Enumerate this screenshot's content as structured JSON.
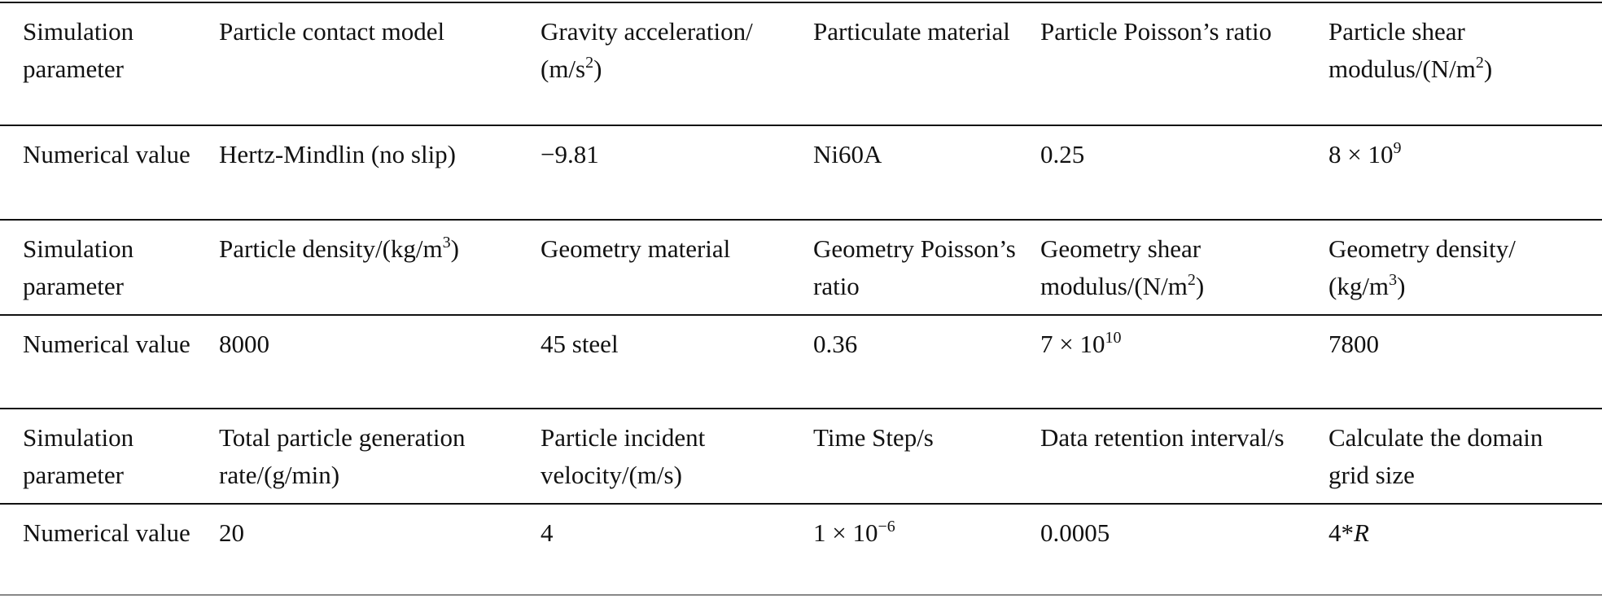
{
  "table": {
    "rows": [
      [
        [
          "Simulation parameter"
        ],
        [
          "Particle contact model"
        ],
        [
          "Gravity acceleration/ (m/s",
          {
            "sup": "2"
          },
          ")"
        ],
        [
          "Particulate material"
        ],
        [
          "Particle Poisson’s ratio"
        ],
        [
          "Particle shear modulus/(N/m",
          {
            "sup": "2"
          },
          ")"
        ]
      ],
      [
        [
          "Numerical value"
        ],
        [
          "Hertz-Mindlin (no slip)"
        ],
        [
          "−9.81"
        ],
        [
          "Ni60A"
        ],
        [
          "0.25"
        ],
        [
          "8 × 10",
          {
            "sup": "9"
          }
        ]
      ],
      [
        [
          "Simulation parameter"
        ],
        [
          "Particle density/(kg/m",
          {
            "sup": "3"
          },
          ")"
        ],
        [
          "Geometry material"
        ],
        [
          "Geometry Poisson’s ratio"
        ],
        [
          "Geometry shear modulus/(N/m",
          {
            "sup": "2"
          },
          ")"
        ],
        [
          "Geometry density/ (kg/m",
          {
            "sup": "3"
          },
          ")"
        ]
      ],
      [
        [
          "Numerical value"
        ],
        [
          "8000"
        ],
        [
          "45 steel"
        ],
        [
          "0.36"
        ],
        [
          "7 × 10",
          {
            "sup": "10"
          }
        ],
        [
          "7800"
        ]
      ],
      [
        [
          "Simulation parameter"
        ],
        [
          "Total particle generation rate/(g/min)"
        ],
        [
          "Particle incident velocity/(m/s)"
        ],
        [
          "Time Step/s"
        ],
        [
          "Data retention interval/s"
        ],
        [
          "Calculate the domain grid size"
        ]
      ],
      [
        [
          "Numerical value"
        ],
        [
          "20"
        ],
        [
          "4"
        ],
        [
          "1 × 10",
          {
            "sup": "−6"
          }
        ],
        [
          "0.0005"
        ],
        [
          "4*",
          {
            "i": "R"
          }
        ]
      ]
    ]
  }
}
